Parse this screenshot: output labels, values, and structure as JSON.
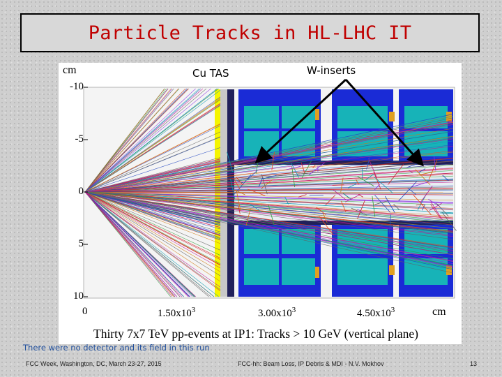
{
  "slide": {
    "title": "Particle Tracks in HL-LHC IT",
    "labels": {
      "cu_tas": "Cu TAS",
      "w_inserts": "W-inserts"
    },
    "figure": {
      "y_unit": "cm",
      "y_ticks": [
        "-10",
        "-5",
        "0",
        "5",
        "10"
      ],
      "x_ticks": [
        {
          "base": "0",
          "exp": ""
        },
        {
          "base": "1.50x10",
          "exp": "3"
        },
        {
          "base": "3.00x10",
          "exp": "3"
        },
        {
          "base": "4.50x10",
          "exp": "3"
        }
      ],
      "x_unit": "cm",
      "caption": "Thirty 7x7 TeV pp-events at IP1: Tracks > 10 GeV (vertical plane)"
    },
    "note": "There were no detector and its field in this run",
    "footer": {
      "left": "FCC Week, Washington, DC, March 23-27, 2015",
      "center": "FCC-hh: Beam Loss, IP Debris & MDI -  N.V. Mokhov",
      "page": "13"
    },
    "colors": {
      "title": "#c00000",
      "magnet_cyan": "#17b3b8",
      "magnet_blue": "#1a2bd6",
      "tas_yellow": "#f5f500",
      "note_text": "#1f4e9c"
    }
  }
}
